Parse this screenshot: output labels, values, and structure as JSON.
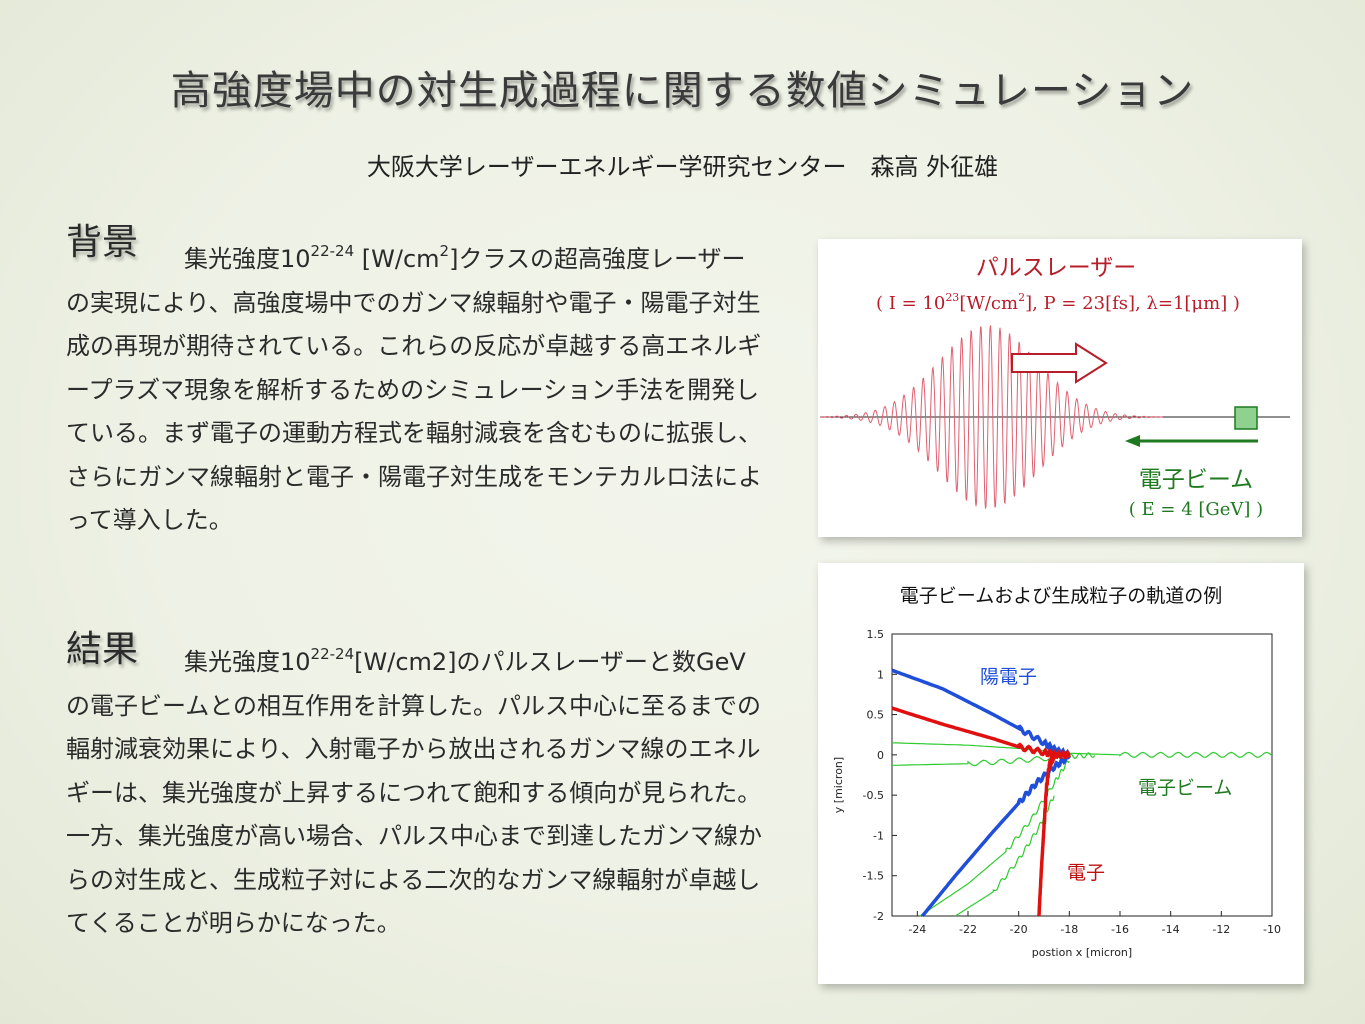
{
  "title": "高強度場中の対生成過程に関する数値シミュレーション",
  "affiliation": "大阪大学レーザーエネルギー学研究センター　森高 外征雄",
  "background": {
    "heading": "背景",
    "pre": "集光強度10",
    "sup": "22-24",
    "post": " [W/cm",
    "sup2": "2",
    "rest": "]クラスの超高強度レーザーの実現により、高強度場中でのガンマ線輻射や電子・陽電子対生成の再現が期待されている。これらの反応が卓越する高エネルギープラズマ現象を解析するためのシミュレーション手法を開発している。まず電子の運動方程式を輻射減衰を含むものに拡張し、さらにガンマ線輻射と電子・陽電子対生成をモンテカルロ法によって導入した。"
  },
  "results": {
    "heading": "結果",
    "pre": "集光強度10",
    "sup": "22-24",
    "rest": "[W/cm2]のパルスレーザーと数GeVの電子ビームとの相互作用を計算した。パルス中心に至るまでの輻射減衰効果により、入射電子から放出されるガンマ線のエネルギーは、集光強度が上昇するにつれて飽和する傾向が見られた。一方、集光強度が高い場合、パルス中心まで到達したガンマ線からの対生成と、生成粒子対による二次的なガンマ線輻射が卓越してくることが明らかになった。"
  },
  "diagram": {
    "laser_label": "パルスレーザー",
    "laser_params_a": "( I = 10",
    "laser_params_sup": "23",
    "laser_params_b": "[W/cm",
    "laser_params_sup2": "2",
    "laser_params_c": "], P = 23[fs],  λ=1[μm] )",
    "beam_label": "電子ビーム",
    "beam_params": "( E = 4 [GeV] )",
    "colors": {
      "laser": "#b81d2a",
      "beam": "#1f7a1f"
    }
  },
  "chart_data": {
    "type": "line",
    "title": "電子ビームおよび生成粒子の軌道の例",
    "xlabel": "postion x [micron]",
    "ylabel": "y [micron]",
    "xlim": [
      -25,
      -10
    ],
    "ylim": [
      -2,
      1.5
    ],
    "xticks": [
      "-24",
      "-22",
      "-20",
      "-18",
      "-16",
      "-14",
      "-12",
      "-10"
    ],
    "yticks": [
      "1.5",
      "1",
      "0.5",
      "0",
      "-0.5",
      "-1",
      "-1.5",
      "-2"
    ],
    "annotations": [
      "陽電子",
      "電子ビーム",
      "電子"
    ],
    "series": [
      {
        "name": "陽電子",
        "color": "#1f4fd8",
        "x": [
          -25,
          -23,
          -21,
          -20,
          -19,
          -18.5,
          -18
        ],
        "y": [
          1.05,
          0.82,
          0.5,
          0.33,
          0.15,
          0.05,
          0.0
        ]
      },
      {
        "name": "陽電子",
        "color": "#1f4fd8",
        "x": [
          -23.8,
          -22.5,
          -21,
          -20,
          -19.3,
          -18.6,
          -18
        ],
        "y": [
          -2.0,
          -1.5,
          -0.95,
          -0.6,
          -0.35,
          -0.15,
          -0.02
        ]
      },
      {
        "name": "電子",
        "color": "#e01010",
        "x": [
          -25,
          -23,
          -21,
          -20,
          -19,
          -18.5,
          -18
        ],
        "y": [
          0.58,
          0.38,
          0.2,
          0.1,
          0.03,
          0.0,
          0.0
        ]
      },
      {
        "name": "電子",
        "color": "#e01010",
        "x": [
          -19.2,
          -19.1,
          -19.0,
          -18.9,
          -18.8,
          -18.6
        ],
        "y": [
          -2.0,
          -1.4,
          -0.9,
          -0.4,
          -0.15,
          0.0
        ]
      },
      {
        "name": "電子ビーム",
        "color": "#2ecc2e",
        "x": [
          -25,
          -22,
          -20,
          -18,
          -16,
          -14,
          -12,
          -10
        ],
        "y": [
          0.15,
          0.12,
          0.08,
          0.02,
          0.0,
          0.0,
          0.0,
          0.0
        ]
      },
      {
        "name": "電子ビーム",
        "color": "#2ecc2e",
        "x": [
          -25,
          -22,
          -20,
          -18,
          -17
        ],
        "y": [
          -0.13,
          -0.11,
          -0.07,
          -0.02,
          0.0
        ]
      },
      {
        "name": "電子ビーム",
        "color": "#2ecc2e",
        "x": [
          -23.9,
          -22,
          -20.5,
          -19.5,
          -18.6,
          -18
        ],
        "y": [
          -2.0,
          -1.6,
          -1.2,
          -0.8,
          -0.35,
          -0.05
        ]
      },
      {
        "name": "電子ビーム",
        "color": "#2ecc2e",
        "x": [
          -22.5,
          -21,
          -20,
          -19.2,
          -18.6
        ],
        "y": [
          -2.0,
          -1.7,
          -1.3,
          -0.9,
          -0.5
        ]
      }
    ]
  }
}
